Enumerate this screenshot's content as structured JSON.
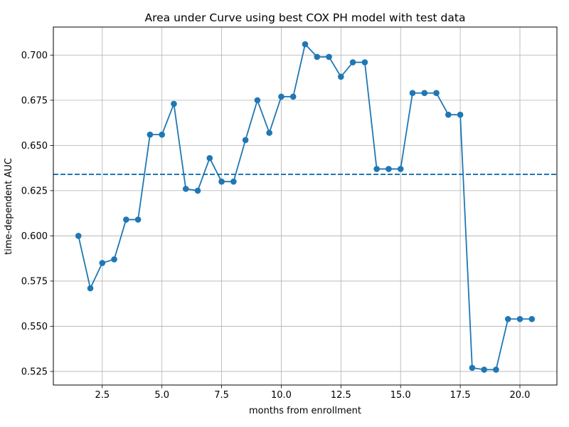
{
  "chart_data": {
    "type": "line",
    "title": "Area under Curve using best COX PH model with test data",
    "xlabel": "months from enrollment",
    "ylabel": "time-dependent AUC",
    "xlim": [
      0.45,
      21.55
    ],
    "ylim": [
      0.5175,
      0.7155
    ],
    "xticks": [
      2.5,
      5.0,
      7.5,
      10.0,
      12.5,
      15.0,
      17.5,
      20.0
    ],
    "xtick_labels": [
      "2.5",
      "5.0",
      "7.5",
      "10.0",
      "12.5",
      "15.0",
      "17.5",
      "20.0"
    ],
    "yticks": [
      0.525,
      0.55,
      0.575,
      0.6,
      0.625,
      0.65,
      0.675,
      0.7
    ],
    "ytick_labels": [
      "0.525",
      "0.550",
      "0.575",
      "0.600",
      "0.625",
      "0.650",
      "0.675",
      "0.700"
    ],
    "grid": true,
    "color": "#1f77b4",
    "series": [
      {
        "marker": "circle",
        "x": [
          1.5,
          2.0,
          2.5,
          3.0,
          3.5,
          4.0,
          4.5,
          5.0,
          5.5,
          6.0,
          6.5,
          7.0,
          7.5,
          8.0,
          8.5,
          9.0,
          9.5,
          10.0,
          10.5,
          11.0,
          11.5,
          12.0,
          12.5,
          13.0,
          13.5,
          14.0,
          14.5,
          15.0,
          15.5,
          16.0,
          16.5,
          17.0,
          17.5,
          18.0,
          18.5,
          19.0,
          19.5,
          20.0,
          20.5
        ],
        "y": [
          0.6,
          0.571,
          0.585,
          0.587,
          0.609,
          0.609,
          0.656,
          0.656,
          0.673,
          0.626,
          0.625,
          0.643,
          0.63,
          0.63,
          0.653,
          0.675,
          0.657,
          0.677,
          0.677,
          0.706,
          0.699,
          0.699,
          0.688,
          0.696,
          0.696,
          0.637,
          0.637,
          0.637,
          0.679,
          0.679,
          0.679,
          0.667,
          0.667,
          0.527,
          0.526,
          0.526,
          0.554,
          0.554,
          0.554
        ]
      }
    ],
    "hline": {
      "y": 0.634,
      "style": "dashed"
    }
  }
}
